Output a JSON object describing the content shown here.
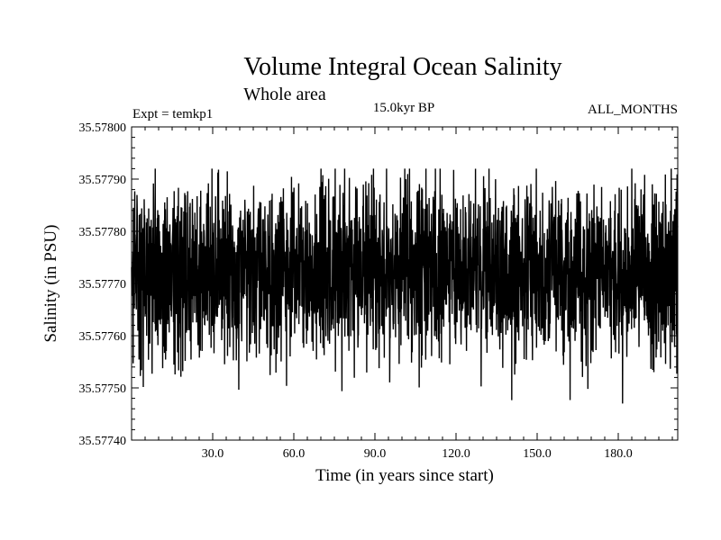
{
  "chart_data": {
    "type": "line",
    "title": "Volume Integral Ocean Salinity",
    "subtitle": "Whole area",
    "annotations": {
      "left": "Expt = temkp1",
      "center": "15.0kyr BP",
      "right": "ALL_MONTHS"
    },
    "xlabel": "Time (in years since start)",
    "ylabel": "Salinity (in PSU)",
    "xlim": [
      0,
      202
    ],
    "ylim": [
      35.5774,
      35.578
    ],
    "x_ticks": [
      30,
      60,
      90,
      120,
      150,
      180
    ],
    "x_tick_labels": [
      "30.0",
      "60.0",
      "90.0",
      "120.0",
      "150.0",
      "180.0"
    ],
    "y_ticks": [
      35.5774,
      35.5775,
      35.5776,
      35.5777,
      35.5778,
      35.5779,
      35.578
    ],
    "y_tick_labels": [
      "35.57740",
      "35.57750",
      "35.57760",
      "35.57770",
      "35.57780",
      "35.57790",
      "35.57800"
    ],
    "grid": false,
    "series": [
      {
        "name": "Salinity",
        "mean": 35.57772,
        "typical_range": [
          35.57755,
          35.57789
        ],
        "max": 35.57792,
        "min": 35.57747,
        "time_step_years": 0.0833,
        "color": "#000000"
      }
    ]
  }
}
